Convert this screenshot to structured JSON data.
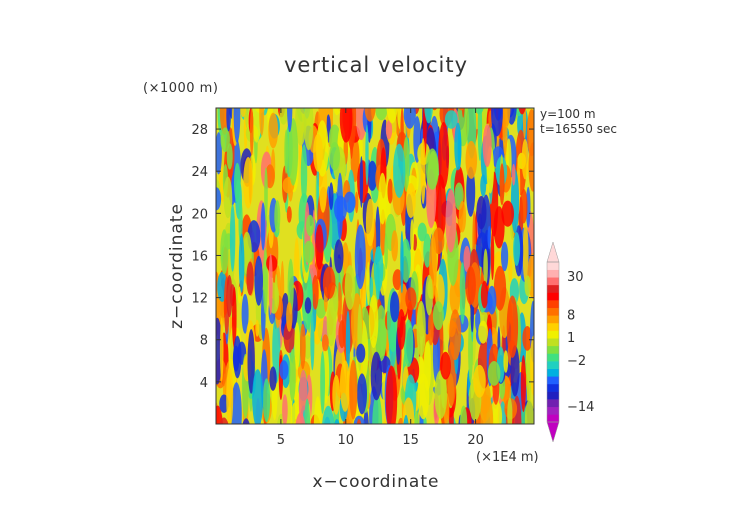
{
  "chart_data": {
    "type": "heatmap",
    "title": "vertical velocity",
    "xlabel": "x−coordinate",
    "ylabel": "z−coordinate",
    "x_unit": "(×1E4 m)",
    "y_unit": "(×1000 m)",
    "annotations": [
      "y=100 m",
      "t=16550 sec"
    ],
    "xlim": [
      0,
      24.5
    ],
    "ylim": [
      0,
      30
    ],
    "x_ticks": [
      "5",
      "10",
      "15",
      "20"
    ],
    "y_ticks": [
      "4",
      "8",
      "12",
      "16",
      "20",
      "24",
      "28"
    ],
    "colorbar": {
      "tick_labels": [
        "30",
        "8",
        "1",
        "−2",
        "−14"
      ],
      "colors": [
        "#c000c0",
        "#a020c0",
        "#7020b0",
        "#2020c0",
        "#1030e0",
        "#2060ff",
        "#00b0e0",
        "#20d0c0",
        "#40e080",
        "#80e040",
        "#c0e020",
        "#f0f000",
        "#ffd000",
        "#ffa000",
        "#ff7000",
        "#ff4000",
        "#ff0000",
        "#e02020",
        "#ff7070",
        "#ffb0b0",
        "#ffd8d8"
      ]
    }
  }
}
